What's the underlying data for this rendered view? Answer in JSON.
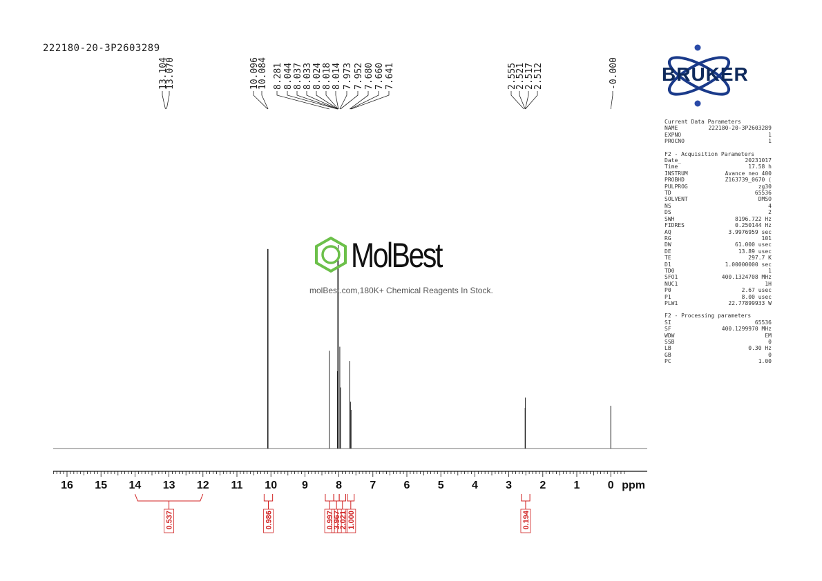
{
  "sample_id": "222180-20-3P2603289",
  "watermark": {
    "name": "MolBest",
    "tagline": "molBest.com,180K+ Chemical Reagents In Stock."
  },
  "brand": {
    "name": "BRUKER"
  },
  "colors": {
    "integral": "#d02020",
    "trace": "#222222",
    "bruker_blue": "#1a3a8a",
    "bruker_dot": "#2a4aa8",
    "logo_green": "#6cc04a"
  },
  "parameters": {
    "current": {
      "title": "Current Data Parameters",
      "rows": [
        {
          "k": "NAME",
          "v": "222180-20-3P2603289"
        },
        {
          "k": "EXPNO",
          "v": "1"
        },
        {
          "k": "PROCNO",
          "v": "1"
        }
      ]
    },
    "acquisition": {
      "title": "F2 - Acquisition Parameters",
      "rows": [
        {
          "k": "Date_",
          "v": "20231017"
        },
        {
          "k": "Time",
          "v": "17.58 h"
        },
        {
          "k": "INSTRUM",
          "v": "Avance neo 400"
        },
        {
          "k": "PROBHD",
          "v": "Z163739_0670 ("
        },
        {
          "k": "PULPROG",
          "v": "zg30"
        },
        {
          "k": "TD",
          "v": "65536"
        },
        {
          "k": "SOLVENT",
          "v": "DMSO"
        },
        {
          "k": "NS",
          "v": "4"
        },
        {
          "k": "DS",
          "v": "2"
        },
        {
          "k": "SWH",
          "v": "8196.722 Hz"
        },
        {
          "k": "FIDRES",
          "v": "0.250144 Hz"
        },
        {
          "k": "AQ",
          "v": "3.9976959 sec"
        },
        {
          "k": "RG",
          "v": "101"
        },
        {
          "k": "DW",
          "v": "61.000 usec"
        },
        {
          "k": "DE",
          "v": "13.89 usec"
        },
        {
          "k": "TE",
          "v": "297.7 K"
        },
        {
          "k": "D1",
          "v": "1.00000000 sec"
        },
        {
          "k": "TD0",
          "v": "1"
        },
        {
          "k": "SFO1",
          "v": "400.1324708 MHz"
        },
        {
          "k": "NUC1",
          "v": "1H"
        },
        {
          "k": "P0",
          "v": "2.67 usec"
        },
        {
          "k": "P1",
          "v": "8.00 usec"
        },
        {
          "k": "PLW1",
          "v": "22.77899933 W"
        }
      ]
    },
    "processing": {
      "title": "F2 - Processing parameters",
      "rows": [
        {
          "k": "SI",
          "v": "65536"
        },
        {
          "k": "SF",
          "v": "400.1299970 MHz"
        },
        {
          "k": "WDW",
          "v": "EM"
        },
        {
          "k": "SSB",
          "v": "0"
        },
        {
          "k": "LB",
          "v": "0.30 Hz"
        },
        {
          "k": "GB",
          "v": "0"
        },
        {
          "k": "PC",
          "v": "1.00"
        }
      ]
    }
  },
  "chart_data": {
    "type": "line",
    "xlabel": "ppm",
    "xlim": [
      16.5,
      -0.5
    ],
    "x_reversed": true,
    "x_ticks": [
      16,
      15,
      14,
      13,
      12,
      11,
      10,
      9,
      8,
      7,
      6,
      5,
      4,
      3,
      2,
      1,
      0
    ],
    "peak_groups": [
      {
        "labels": [
          "13.104",
          "13.070"
        ]
      },
      {
        "labels": [
          "10.096",
          "10.084",
          "8.281",
          "8.044",
          "8.037",
          "8.033",
          "8.024",
          "8.018",
          "8.014",
          "7.973",
          "7.952",
          "7.680",
          "7.660",
          "7.641"
        ]
      },
      {
        "labels": [
          "2.555",
          "2.521",
          "2.517",
          "2.512"
        ]
      },
      {
        "labels": [
          "-0.000"
        ]
      }
    ],
    "peaks": [
      {
        "ppm": 10.096,
        "height": 0.98
      },
      {
        "ppm": 10.084,
        "height": 0.98
      },
      {
        "ppm": 8.281,
        "height": 0.48
      },
      {
        "ppm": 8.044,
        "height": 0.38
      },
      {
        "ppm": 8.033,
        "height": 0.93
      },
      {
        "ppm": 8.018,
        "height": 1.0
      },
      {
        "ppm": 7.973,
        "height": 0.5
      },
      {
        "ppm": 7.952,
        "height": 0.3
      },
      {
        "ppm": 7.68,
        "height": 0.43
      },
      {
        "ppm": 7.66,
        "height": 0.23
      },
      {
        "ppm": 7.641,
        "height": 0.19
      },
      {
        "ppm": 2.521,
        "height": 0.2
      },
      {
        "ppm": 2.512,
        "height": 0.25
      },
      {
        "ppm": 0.0,
        "height": 0.21
      }
    ],
    "integrals": [
      {
        "from": 14.0,
        "to": 12.0,
        "value": "0.537"
      },
      {
        "from": 10.2,
        "to": 9.95,
        "value": "0.986"
      },
      {
        "from": 8.4,
        "to": 8.15,
        "value": "0.997"
      },
      {
        "from": 8.15,
        "to": 7.99,
        "value": "3.967"
      },
      {
        "from": 7.99,
        "to": 7.8,
        "value": "2.021"
      },
      {
        "from": 7.75,
        "to": 7.55,
        "value": "1.000"
      },
      {
        "from": 2.63,
        "to": 2.38,
        "value": "0.194"
      }
    ]
  }
}
